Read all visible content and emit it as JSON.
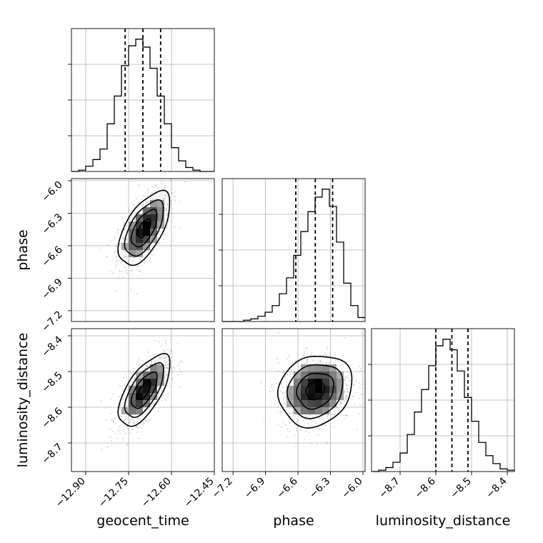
{
  "chart_data": {
    "type": "corner",
    "parameters": [
      "geocent_time",
      "phase",
      "luminosity_distance"
    ],
    "grid": true,
    "ticks": {
      "geocent_time": {
        "values": [
          -12.9,
          -12.75,
          -12.6,
          -12.45
        ],
        "labels": [
          "−12.90",
          "−12.75",
          "−12.60",
          "−12.45"
        ]
      },
      "phase": {
        "values": [
          -7.2,
          -6.9,
          -6.6,
          -6.3,
          -6.0
        ],
        "labels": [
          "−7.2",
          "−6.9",
          "−6.6",
          "−6.3",
          "−6.0"
        ]
      },
      "luminosity_distance": {
        "values": [
          -8.7,
          -8.6,
          -8.5,
          -8.4
        ],
        "labels": [
          "−8.7",
          "−8.6",
          "−8.5",
          "−8.4"
        ]
      }
    },
    "ranges": {
      "geocent_time": [
        -12.95,
        -12.45
      ],
      "phase": [
        -7.3,
        -5.98
      ],
      "luminosity_distance": [
        -8.78,
        -8.38
      ]
    },
    "marginals": [
      {
        "parameter": "geocent_time",
        "bin_edges": [
          -12.95,
          -12.925,
          -12.9,
          -12.875,
          -12.85,
          -12.825,
          -12.8,
          -12.775,
          -12.75,
          -12.725,
          -12.7,
          -12.675,
          -12.65,
          -12.625,
          -12.6,
          -12.575,
          -12.55,
          -12.525,
          -12.5,
          -12.475,
          -12.45
        ],
        "counts": [
          0,
          1,
          4,
          9,
          17,
          36,
          57,
          80,
          95,
          100,
          94,
          78,
          57,
          36,
          18,
          8,
          3,
          1,
          0,
          0
        ],
        "quantiles": [
          -12.762,
          -12.7,
          -12.638
        ]
      },
      {
        "parameter": "phase",
        "bin_edges": [
          -7.3,
          -7.234,
          -7.168,
          -7.102,
          -7.036,
          -6.97,
          -6.904,
          -6.838,
          -6.772,
          -6.706,
          -6.64,
          -6.574,
          -6.508,
          -6.442,
          -6.376,
          -6.31,
          -6.244,
          -6.178,
          -6.112,
          -6.046,
          -5.98
        ],
        "counts": [
          0,
          0,
          0,
          1,
          2,
          4,
          7,
          12,
          21,
          33,
          50,
          68,
          83,
          94,
          100,
          87,
          60,
          29,
          12,
          3
        ],
        "quantiles": [
          -6.62,
          -6.44,
          -6.28
        ]
      },
      {
        "parameter": "luminosity_distance",
        "bin_edges": [
          -8.78,
          -8.76,
          -8.74,
          -8.72,
          -8.7,
          -8.68,
          -8.66,
          -8.64,
          -8.62,
          -8.6,
          -8.58,
          -8.56,
          -8.54,
          -8.52,
          -8.5,
          -8.48,
          -8.46,
          -8.44,
          -8.42,
          -8.4,
          -8.38
        ],
        "counts": [
          0,
          1,
          3,
          7,
          14,
          28,
          45,
          62,
          80,
          95,
          100,
          92,
          76,
          56,
          38,
          22,
          12,
          6,
          2,
          1
        ],
        "quantiles": [
          -8.6,
          -8.555,
          -8.51
        ]
      }
    ],
    "joint": [
      {
        "x": "geocent_time",
        "y": "phase",
        "mean": [
          -12.695,
          -6.44
        ],
        "std": [
          0.045,
          0.17
        ],
        "corr": 0.6
      },
      {
        "x": "geocent_time",
        "y": "luminosity_distance",
        "mean": [
          -12.695,
          -8.553
        ],
        "std": [
          0.045,
          0.05
        ],
        "corr": 0.65
      },
      {
        "x": "phase",
        "y": "luminosity_distance",
        "mean": [
          -6.44,
          -8.553
        ],
        "std": [
          0.17,
          0.05
        ],
        "corr": 0.15
      }
    ]
  }
}
